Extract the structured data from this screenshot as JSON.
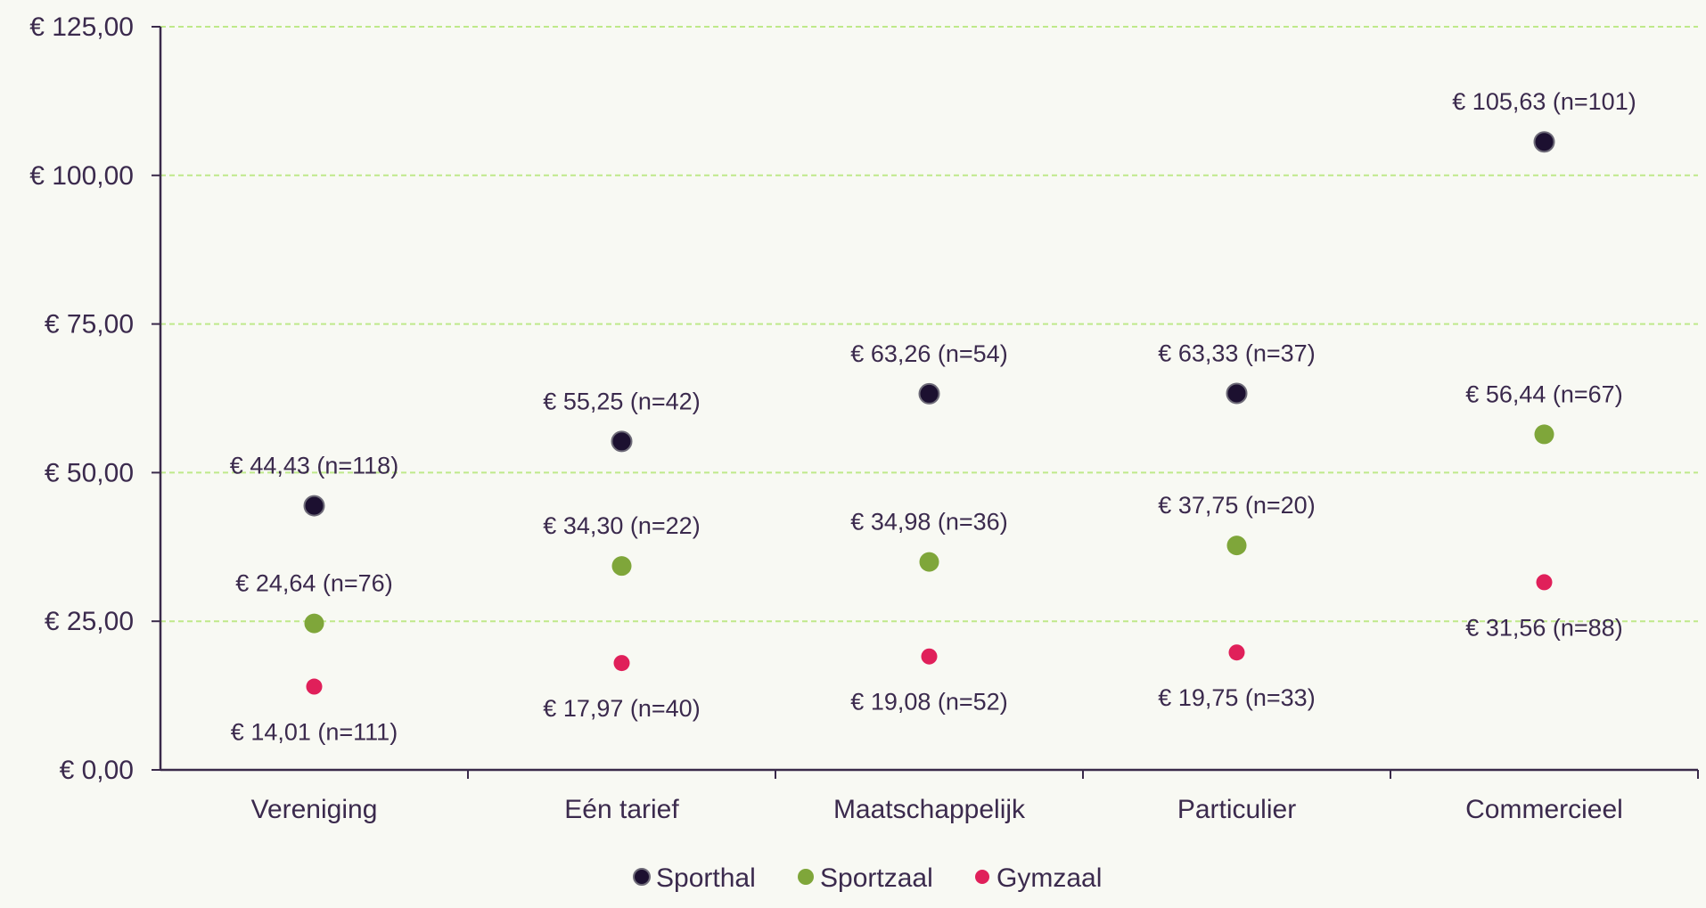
{
  "chart_data": {
    "type": "scatter",
    "title": "",
    "xlabel": "",
    "ylabel": "",
    "categories": [
      "Vereniging",
      "Eén tarief",
      "Maatschappelijk",
      "Particulier",
      "Commercieel"
    ],
    "ylim": [
      0,
      125
    ],
    "yticks": [
      0,
      25,
      50,
      75,
      100,
      125
    ],
    "ytick_labels": [
      "€ 0,00",
      "€ 25,00",
      "€ 50,00",
      "€ 75,00",
      "€ 100,00",
      "€ 125,00"
    ],
    "grid": true,
    "legend_position": "bottom-center",
    "series": [
      {
        "name": "Sporthal",
        "color": "#1c1030",
        "values": [
          44.43,
          55.25,
          63.26,
          63.33,
          105.63
        ],
        "labels": [
          "€ 44,43 (n=118)",
          "€ 55,25 (n=42)",
          "€ 63,26 (n=54)",
          "€ 63,33 (n=37)",
          "€ 105,63 (n=101)"
        ]
      },
      {
        "name": "Sportzaal",
        "color": "#7fa63a",
        "values": [
          24.64,
          34.3,
          34.98,
          37.75,
          56.44
        ],
        "labels": [
          "€ 24,64 (n=76)",
          "€ 34,30 (n=22)",
          "€ 34,98 (n=36)",
          "€ 37,75 (n=20)",
          "€ 56,44 (n=67)"
        ]
      },
      {
        "name": "Gymzaal",
        "color": "#e0205a",
        "values": [
          14.01,
          17.97,
          19.08,
          19.75,
          31.56
        ],
        "labels": [
          "€ 14,01 (n=111)",
          "€ 17,97 (n=40)",
          "€ 19,08 (n=52)",
          "€ 19,75 (n=33)",
          "€ 31,56 (n=88)"
        ]
      }
    ]
  },
  "colors": {
    "axis": "#3a2a4a",
    "grid": "#bfe98a",
    "text": "#3b2a4d",
    "background": "#f8f9f3"
  }
}
